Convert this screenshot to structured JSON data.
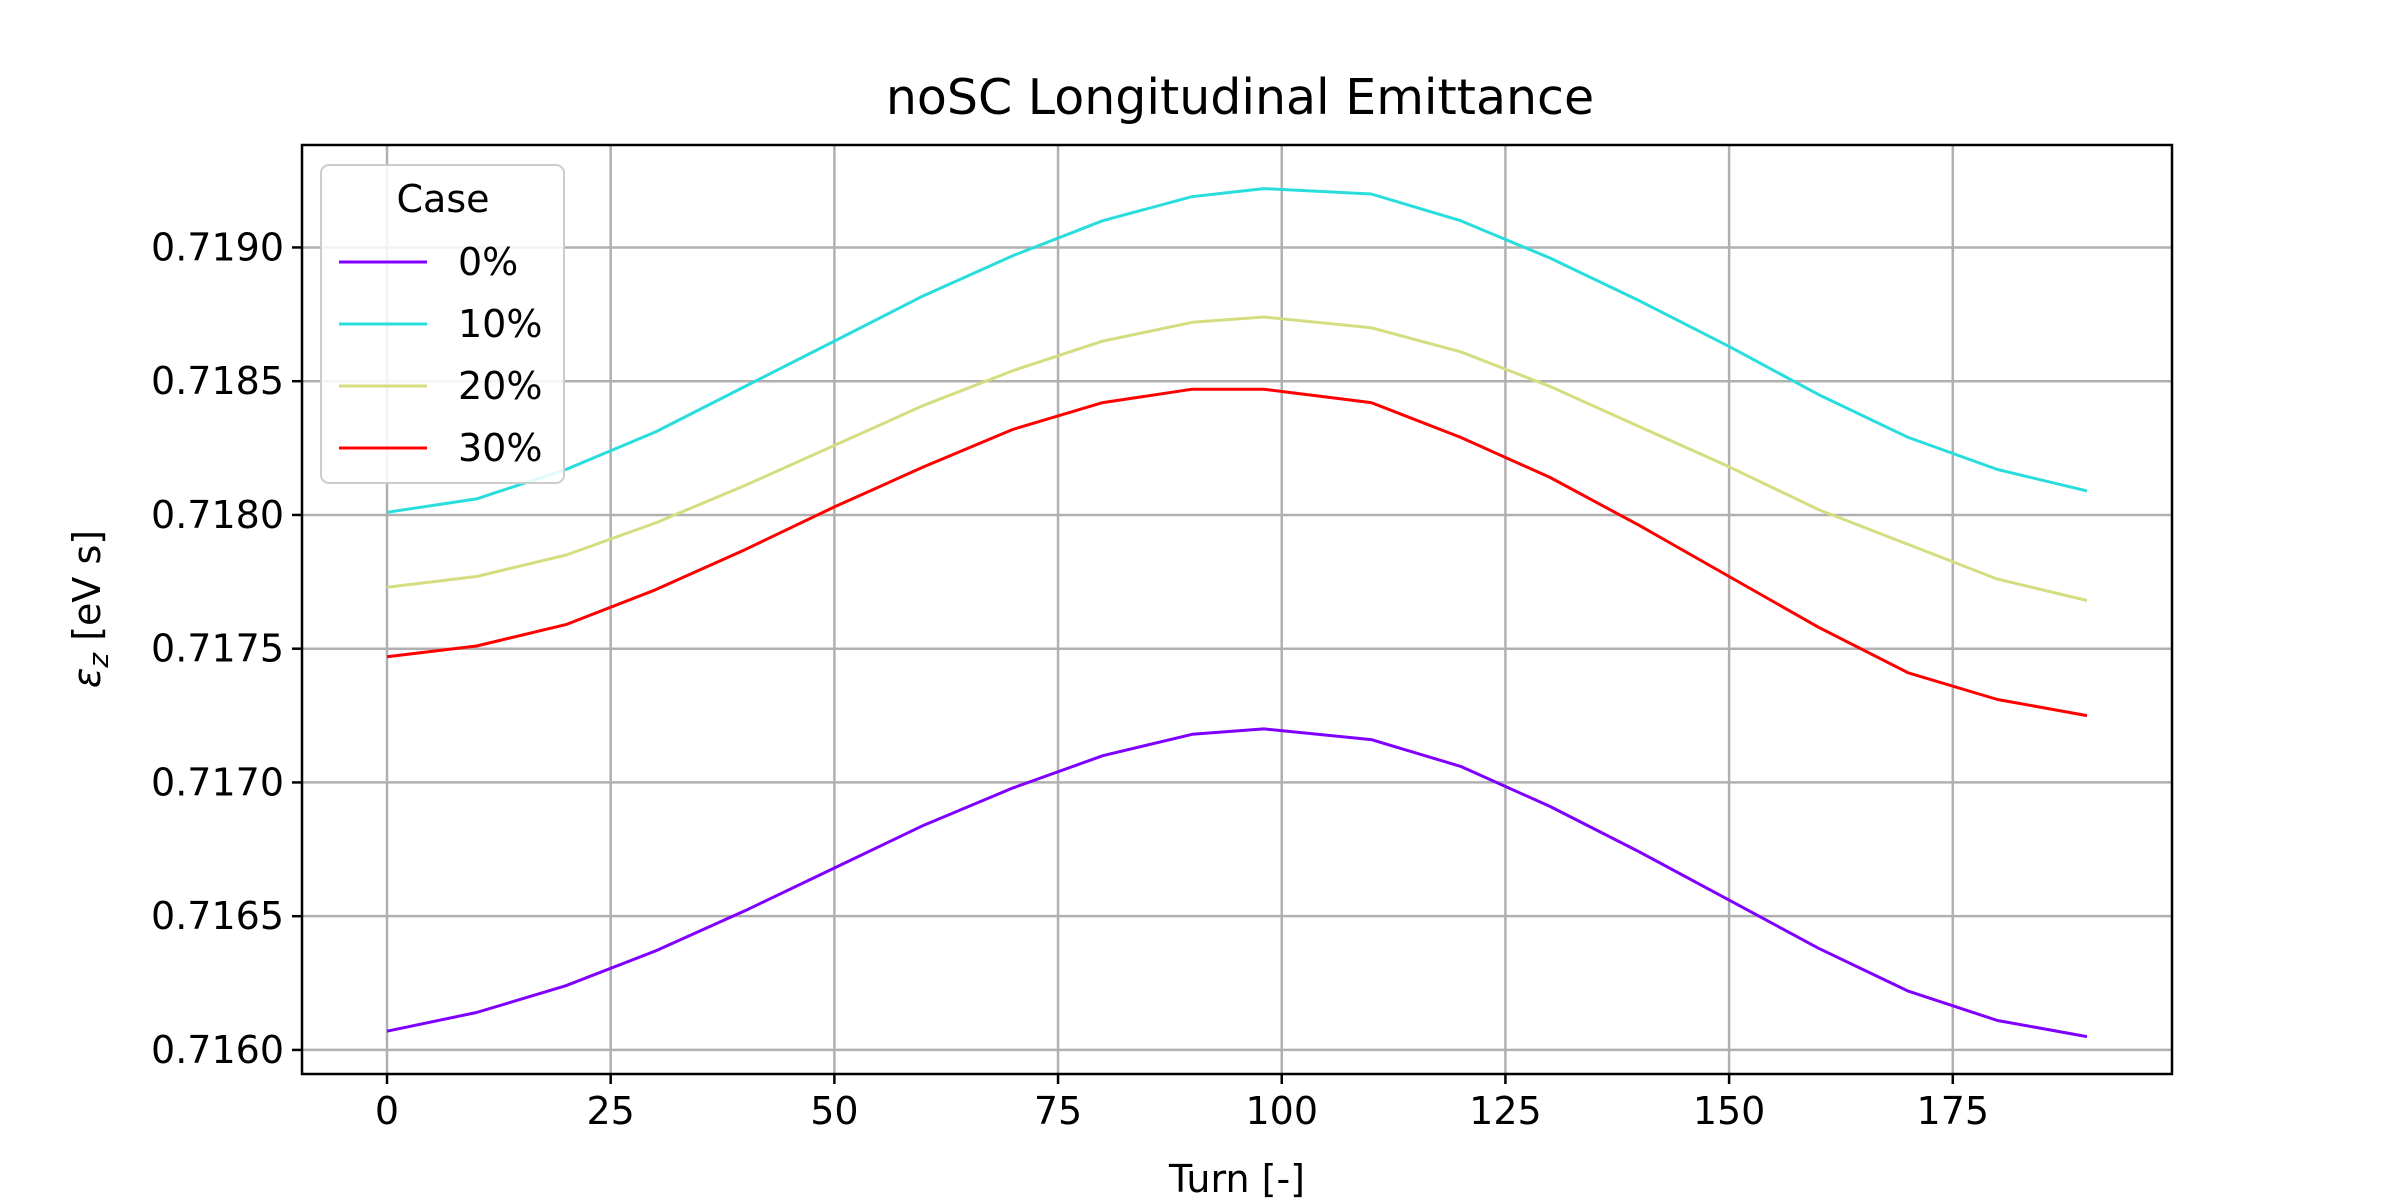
{
  "chart_data": {
    "type": "line",
    "title": "noSC Longitudinal Emittance",
    "xlabel": "Turn [-]",
    "ylabel_symbol": "ε",
    "ylabel_subscript": "z",
    "ylabel_unit": " [eV s]",
    "xlim": [
      -9.5,
      199.5
    ],
    "ylim": [
      0.71591,
      0.719383
    ],
    "xticks": [
      0,
      25,
      50,
      75,
      100,
      125,
      150,
      175
    ],
    "yticks": [
      0.716,
      0.7165,
      0.717,
      0.7175,
      0.718,
      0.7185,
      0.719
    ],
    "ytick_labels": [
      "0.7160",
      "0.7165",
      "0.7170",
      "0.7175",
      "0.7180",
      "0.7185",
      "0.7190"
    ],
    "grid": true,
    "legend": {
      "title": "Case",
      "location": "upper left"
    },
    "x": [
      0,
      10,
      20,
      30,
      40,
      50,
      60,
      70,
      80,
      90,
      98,
      110,
      120,
      130,
      140,
      150,
      160,
      170,
      180,
      190
    ],
    "series": [
      {
        "name": "0%",
        "color": "#8000ff",
        "values": [
          0.71607,
          0.71614,
          0.71624,
          0.71637,
          0.71652,
          0.71668,
          0.71684,
          0.71698,
          0.7171,
          0.71718,
          0.7172,
          0.71716,
          0.71706,
          0.71691,
          0.71674,
          0.71656,
          0.71638,
          0.71622,
          0.71611,
          0.71605
        ]
      },
      {
        "name": "10%",
        "color": "#2adddd",
        "values": [
          0.71801,
          0.71806,
          0.71817,
          0.71831,
          0.71848,
          0.71865,
          0.71882,
          0.71897,
          0.7191,
          0.71919,
          0.71922,
          0.7192,
          0.7191,
          0.71896,
          0.7188,
          0.71863,
          0.71845,
          0.71829,
          0.71817,
          0.71809
        ]
      },
      {
        "name": "20%",
        "color": "#d4dd80",
        "values": [
          0.71773,
          0.71777,
          0.71785,
          0.71797,
          0.71811,
          0.71826,
          0.71841,
          0.71854,
          0.71865,
          0.71872,
          0.71874,
          0.7187,
          0.71861,
          0.71848,
          0.71833,
          0.71818,
          0.71802,
          0.71789,
          0.71776,
          0.71768
        ]
      },
      {
        "name": "30%",
        "color": "#ff0000",
        "values": [
          0.71747,
          0.71751,
          0.71759,
          0.71772,
          0.71787,
          0.71803,
          0.71818,
          0.71832,
          0.71842,
          0.71847,
          0.71847,
          0.71842,
          0.71829,
          0.71814,
          0.71796,
          0.71777,
          0.71758,
          0.71741,
          0.71731,
          0.71725
        ]
      }
    ]
  }
}
